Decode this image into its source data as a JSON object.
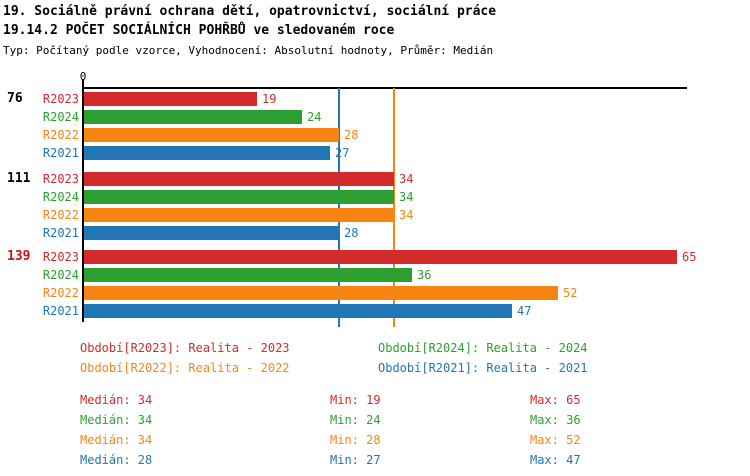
{
  "header": {
    "line1": "19. Sociálně právní ochrana dětí, opatrovnictví, sociální práce",
    "line2": "19.14.2 POČET SOCIÁLNÍCH POHŘBŮ ve sledovaném roce",
    "line3": "Typ: Počítaný podle vzorce, Vyhodnocení: Absolutní hodnoty, Průměr: Medián"
  },
  "palette": {
    "red": "#d32b2b",
    "green": "#2c9f30",
    "orange": "#f88511",
    "blue": "#2176b5",
    "black": "#000000",
    "category_highlight_red": "#cc1111"
  },
  "chart_data": {
    "type": "bar",
    "orientation": "horizontal",
    "title": "19.14.2 POČET SOCIÁLNÍCH POHŘBŮ ve sledovaném roce",
    "axis": {
      "zero_label": "0",
      "min": 0,
      "max": 66,
      "grid": false
    },
    "categories": [
      "76",
      "111",
      "139"
    ],
    "category_label_colors": [
      "black",
      "black",
      "category_highlight_red"
    ],
    "series": [
      {
        "name": "R2023",
        "color": "red",
        "values": [
          19,
          34,
          65
        ]
      },
      {
        "name": "R2024",
        "color": "green",
        "values": [
          24,
          34,
          36
        ]
      },
      {
        "name": "R2022",
        "color": "orange",
        "values": [
          28,
          34,
          52
        ]
      },
      {
        "name": "R2021",
        "color": "blue",
        "values": [
          27,
          28,
          47
        ]
      }
    ],
    "median_lines": [
      {
        "series": "R2023",
        "color": "red",
        "value": 34
      },
      {
        "series": "R2024",
        "color": "green",
        "value": 34
      },
      {
        "series": "R2022",
        "color": "orange",
        "value": 34
      },
      {
        "series": "R2021",
        "color": "blue",
        "value": 28
      }
    ]
  },
  "legend": {
    "items": [
      {
        "series": "R2023",
        "label": "Období[R2023]: Realita - 2023",
        "color": "red"
      },
      {
        "series": "R2024",
        "label": "Období[R2024]: Realita - 2024",
        "color": "green"
      },
      {
        "series": "R2022",
        "label": "Období[R2022]: Realita - 2022",
        "color": "orange"
      },
      {
        "series": "R2021",
        "label": "Období[R2021]: Realita - 2021",
        "color": "blue"
      }
    ]
  },
  "stats": {
    "median_label": "Medián",
    "min_label": "Min",
    "max_label": "Max",
    "rows": [
      {
        "series": "R2023",
        "color": "red",
        "median": 34,
        "min": 19,
        "max": 65
      },
      {
        "series": "R2024",
        "color": "green",
        "median": 34,
        "min": 24,
        "max": 36
      },
      {
        "series": "R2022",
        "color": "orange",
        "median": 34,
        "min": 28,
        "max": 52
      },
      {
        "series": "R2021",
        "color": "blue",
        "median": 28,
        "min": 27,
        "max": 47
      }
    ]
  }
}
